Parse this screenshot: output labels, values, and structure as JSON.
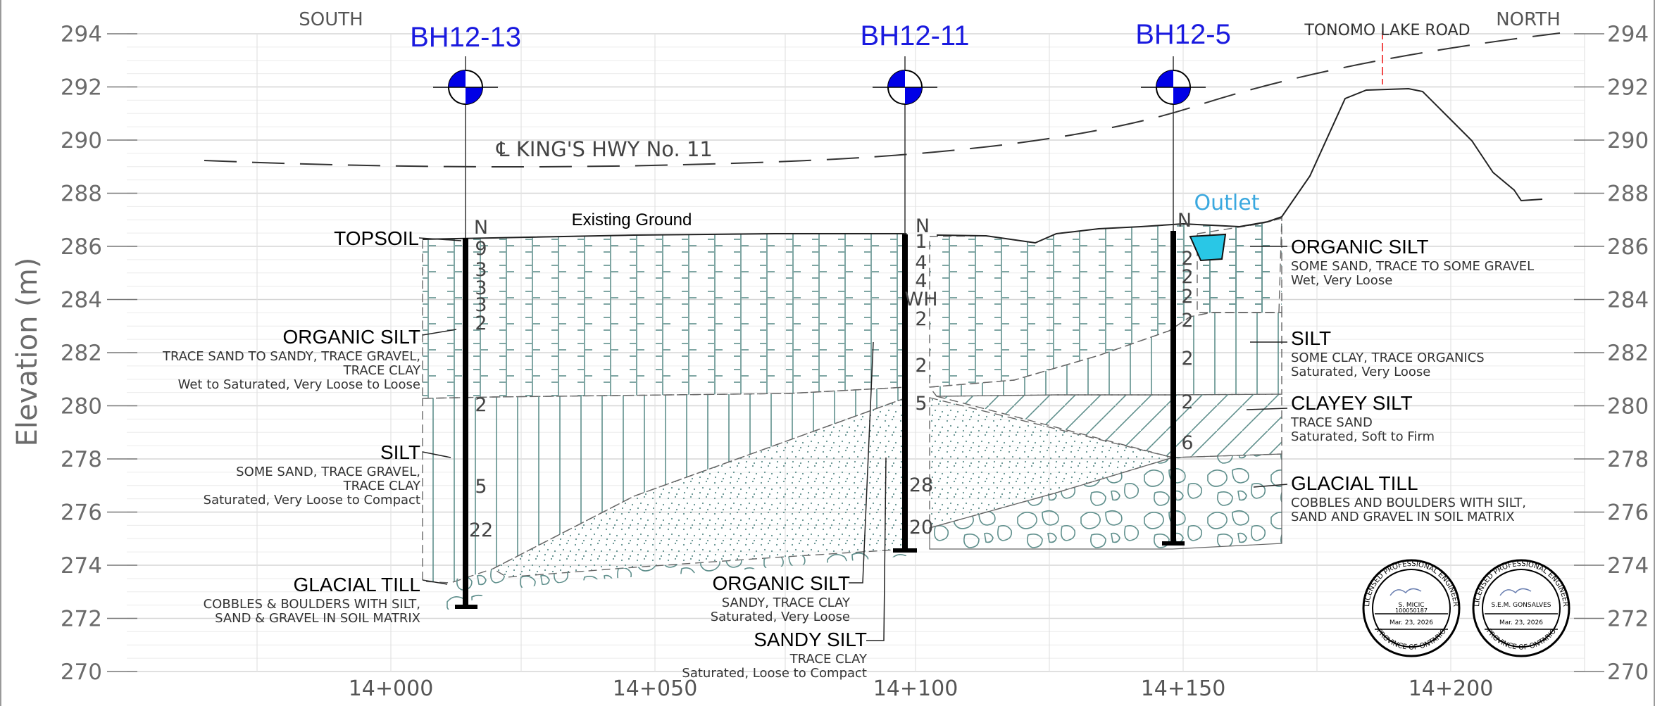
{
  "axis": {
    "ylabel": "Elevation (m)",
    "elevations": [
      "294",
      "292",
      "290",
      "288",
      "286",
      "284",
      "282",
      "280",
      "278",
      "276",
      "274",
      "272",
      "270"
    ],
    "stations": [
      "14+000",
      "14+050",
      "14+100",
      "14+150",
      "14+200"
    ]
  },
  "compass": {
    "south": "SOUTH",
    "north": "NORTH"
  },
  "road": "TONOMO LAKE ROAD",
  "highway": "℄ KING'S HWY No. 11",
  "existing_ground": "Existing Ground",
  "outlet": "Outlet",
  "boreholes": [
    {
      "id": "BH12-13",
      "n_header": "N",
      "n_values": [
        "9",
        "3",
        "3",
        "3",
        "2",
        "2",
        "5",
        "22"
      ]
    },
    {
      "id": "BH12-11",
      "n_header": "N",
      "n_values": [
        "1",
        "4",
        "4",
        "WH",
        "2",
        "2",
        "5",
        "28",
        "20"
      ]
    },
    {
      "id": "BH12-5",
      "n_header": "N",
      "n_values": [
        "2",
        "2",
        "2",
        "2",
        "2",
        "2",
        "6"
      ]
    }
  ],
  "labels_left": [
    {
      "title": "TOPSOIL",
      "lines": []
    },
    {
      "title": "ORGANIC SILT",
      "lines": [
        "TRACE SAND TO SANDY, TRACE GRAVEL,",
        "TRACE CLAY",
        "Wet to Saturated, Very Loose to Loose"
      ]
    },
    {
      "title": "SILT",
      "lines": [
        "SOME SAND, TRACE GRAVEL,",
        "TRACE CLAY",
        "Saturated, Very Loose to Compact"
      ]
    },
    {
      "title": "GLACIAL TILL",
      "lines": [
        "COBBLES & BOULDERS WITH SILT,",
        "SAND & GRAVEL IN SOIL MATRIX"
      ]
    }
  ],
  "labels_mid": [
    {
      "title": "ORGANIC SILT",
      "lines": [
        "SANDY, TRACE CLAY",
        "Saturated, Very Loose"
      ]
    },
    {
      "title": "SANDY SILT",
      "lines": [
        "TRACE CLAY",
        "Saturated, Loose to Compact"
      ]
    }
  ],
  "labels_right": [
    {
      "title": "ORGANIC SILT",
      "lines": [
        "SOME SAND, TRACE TO SOME GRAVEL",
        "Wet, Very Loose"
      ]
    },
    {
      "title": "SILT",
      "lines": [
        "SOME CLAY, TRACE ORGANICS",
        "Saturated, Very Loose"
      ]
    },
    {
      "title": "CLAYEY SILT",
      "lines": [
        "TRACE SAND",
        "Saturated, Soft to Firm"
      ]
    },
    {
      "title": "GLACIAL TILL",
      "lines": [
        "COBBLES AND BOULDERS WITH SILT,",
        "SAND AND GRAVEL IN SOIL MATRIX"
      ]
    }
  ],
  "seals": [
    {
      "top": "LICENSED PROFESSIONAL ENGINEER",
      "name": "S. MICIC",
      "number": "100050187",
      "date": "Mar. 23, 2026",
      "bottom": "PROVINCE OF ONTARIO"
    },
    {
      "top": "LICENSED PROFESSIONAL ENGINEER",
      "name": "S.E.M. GONSALVES",
      "number": "",
      "date": "Mar. 23, 2026",
      "bottom": "PROVINCE OF ONTARIO"
    }
  ],
  "colors": {
    "borehole_label": "#1a1adf",
    "outlet": "#3aa8df",
    "hatch": "#5f8f8c",
    "grid": "#dcdcdc"
  }
}
